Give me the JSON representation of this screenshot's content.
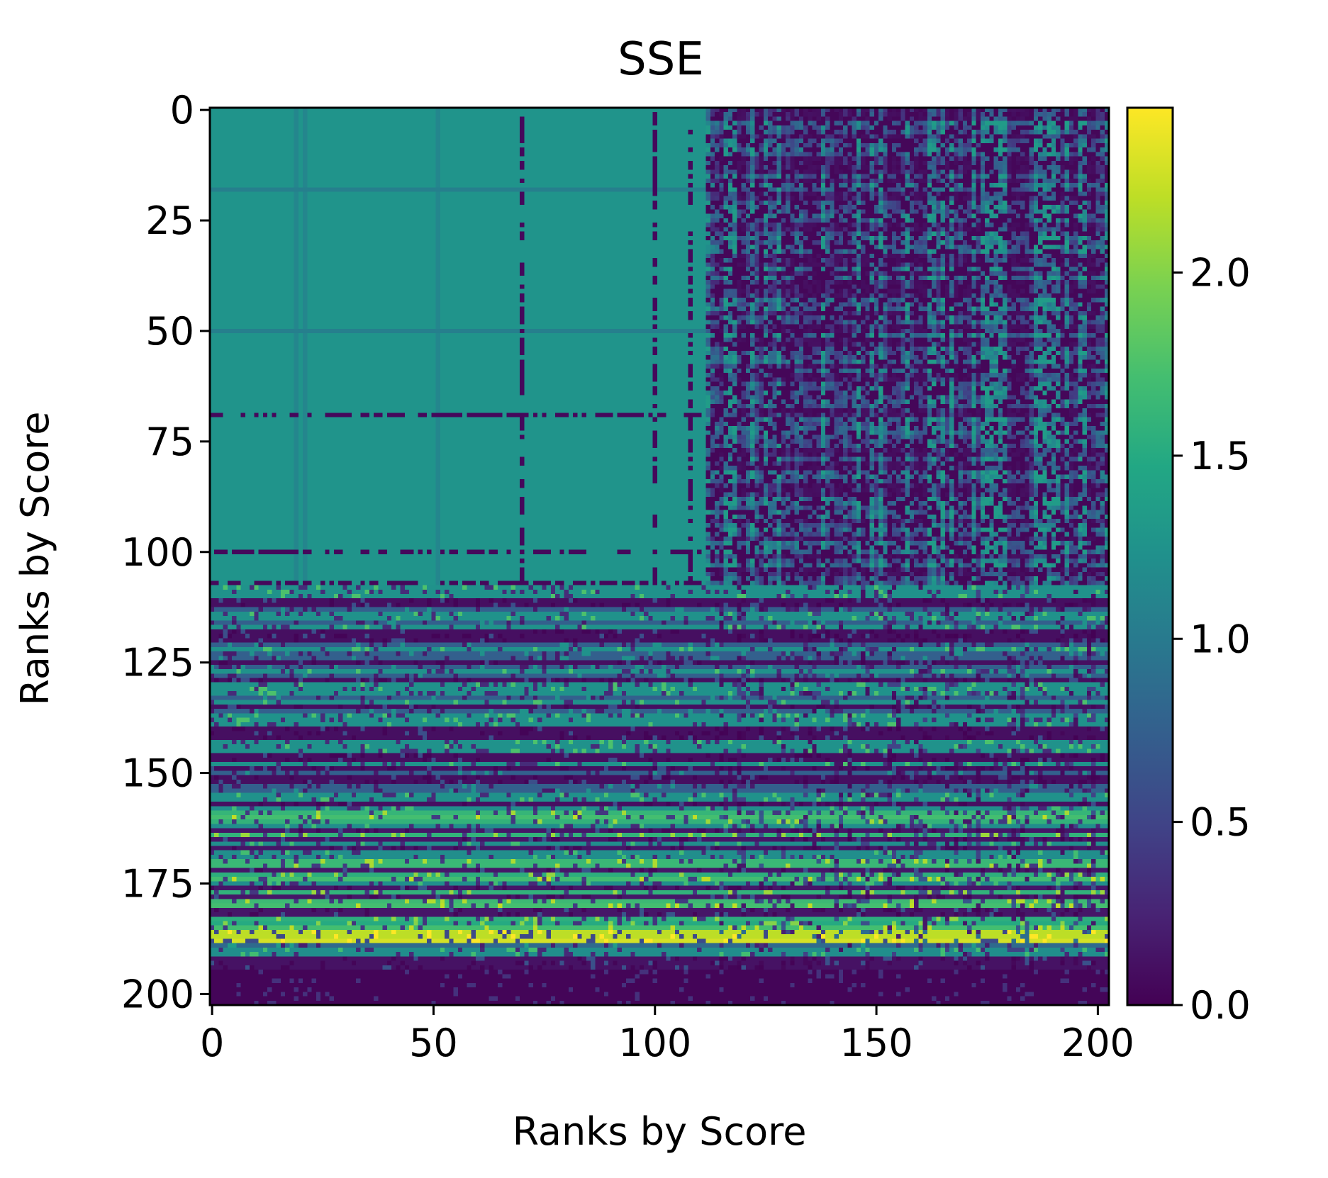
{
  "chart_data": {
    "type": "heatmap",
    "title": "SSE",
    "xlabel": "Ranks by Score",
    "ylabel": "Ranks by Score",
    "n": 203,
    "xlim": [
      -0.5,
      202.5
    ],
    "ylim": [
      202.5,
      -0.5
    ],
    "x_ticks": [
      0,
      50,
      100,
      150,
      200
    ],
    "x_tick_labels": [
      "0",
      "50",
      "100",
      "150",
      "200"
    ],
    "y_ticks": [
      0,
      25,
      50,
      75,
      100,
      125,
      150,
      175,
      200
    ],
    "y_tick_labels": [
      "0",
      "25",
      "50",
      "75",
      "100",
      "125",
      "150",
      "175",
      "200"
    ],
    "colorbar": {
      "colormap": "viridis",
      "vmin": 0.0,
      "vmax": 2.45,
      "ticks": [
        0.0,
        0.5,
        1.0,
        1.5,
        2.0
      ],
      "tick_labels": [
        "0.0",
        "0.5",
        "1.0",
        "1.5",
        "2.0"
      ]
    },
    "regions": [
      {
        "rows": [
          0,
          107
        ],
        "cols": [
          0,
          111
        ],
        "value": 1.27,
        "note": "near-uniform block"
      },
      {
        "rows": [
          0,
          107
        ],
        "cols": [
          112,
          202
        ],
        "value_range": [
          0.0,
          1.4
        ]
      },
      {
        "rows": [
          108,
          202
        ],
        "cols": [
          0,
          202
        ],
        "value_range": [
          0.0,
          2.45
        ]
      },
      {
        "rows": [
          186,
          188
        ],
        "cols": [
          0,
          202
        ],
        "value_range": [
          1.8,
          2.45
        ]
      },
      {
        "rows": [
          195,
          202
        ],
        "cols": [
          0,
          202
        ],
        "value_range": [
          0.0,
          0.2
        ]
      }
    ],
    "dark_rows_in_block": [
      69,
      100,
      107
    ],
    "dark_cols_in_block": [
      70,
      100,
      108
    ]
  }
}
